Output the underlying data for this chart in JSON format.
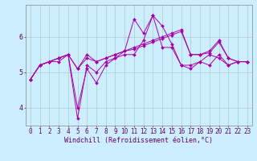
{
  "xlabel": "Windchill (Refroidissement éolien,°C)",
  "background_color": "#cceeff",
  "grid_color": "#aacccc",
  "line_color": "#aa00aa",
  "x_ticks": [
    0,
    1,
    2,
    3,
    4,
    5,
    6,
    7,
    8,
    9,
    10,
    11,
    12,
    13,
    14,
    15,
    16,
    17,
    18,
    19,
    20,
    21,
    22,
    23
  ],
  "y_ticks": [
    4,
    5,
    6
  ],
  "ylim": [
    3.5,
    6.9
  ],
  "xlim": [
    -0.5,
    23.5
  ],
  "series": [
    [
      4.8,
      5.2,
      5.3,
      5.3,
      5.5,
      4.0,
      5.1,
      4.7,
      5.2,
      5.4,
      5.5,
      5.5,
      5.9,
      6.6,
      5.7,
      5.7,
      5.2,
      5.2,
      5.3,
      5.5,
      5.4,
      5.2,
      5.3,
      5.3
    ],
    [
      4.8,
      5.2,
      5.3,
      5.4,
      5.5,
      3.7,
      5.2,
      5.0,
      5.3,
      5.4,
      5.6,
      6.5,
      6.1,
      6.6,
      6.3,
      5.8,
      5.2,
      5.1,
      5.3,
      5.2,
      5.5,
      5.2,
      5.3,
      5.3
    ],
    [
      4.8,
      5.2,
      5.3,
      5.4,
      5.5,
      5.1,
      5.4,
      5.3,
      5.4,
      5.5,
      5.6,
      5.65,
      5.75,
      5.85,
      5.95,
      6.05,
      6.15,
      5.5,
      5.5,
      5.55,
      5.85,
      5.4,
      5.3,
      5.3
    ],
    [
      4.8,
      5.2,
      5.3,
      5.4,
      5.5,
      5.1,
      5.5,
      5.3,
      5.4,
      5.5,
      5.6,
      5.7,
      5.8,
      5.9,
      6.0,
      6.1,
      6.2,
      5.5,
      5.5,
      5.6,
      5.9,
      5.4,
      5.3,
      5.3
    ]
  ],
  "tick_fontsize": 5.5,
  "xlabel_fontsize": 6.0,
  "tick_color": "#660066",
  "spine_color": "#888888"
}
